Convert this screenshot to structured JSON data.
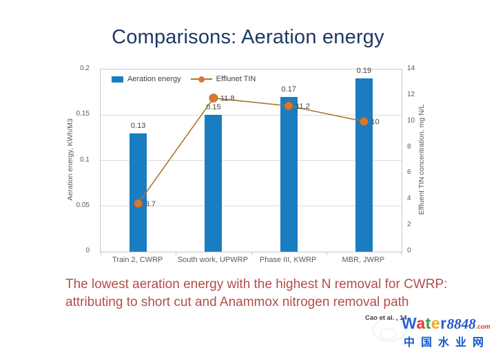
{
  "slide": {
    "title": "Comparisons: Aeration energy",
    "caption": {
      "line1": "The lowest aeration energy with the highest N removal for CWRP:",
      "line2": "attributing to short cut and Anammox nitrogen removal path"
    },
    "citation": "Cao et al. , 14"
  },
  "chart_data": {
    "type": "bar",
    "subtype": "bar-line-combo",
    "categories": [
      "Train 2, CWRP",
      "South work, UPWRP",
      "Phase III, KWRP",
      "MBR, JWRP"
    ],
    "series": [
      {
        "name": "Aeration energy",
        "type": "bar",
        "axis": "left",
        "values": [
          0.13,
          0.15,
          0.17,
          0.19
        ],
        "labels": [
          "0.13",
          "0.15",
          "0.17",
          "0.19"
        ],
        "color": "#1a7dc2"
      },
      {
        "name": "Efflunet TIN",
        "type": "line",
        "axis": "right",
        "values": [
          3.7,
          11.8,
          11.2,
          10
        ],
        "labels": [
          "3.7",
          "11.8",
          "11.2",
          "10"
        ],
        "line_color": "#a5782c",
        "marker_color": "#d9772e",
        "marker_edge_color": "#a86420"
      }
    ],
    "left_axis": {
      "label": "Aeration energy, KWh/M3",
      "min": 0,
      "max": 0.2,
      "ticks": [
        "0.2",
        "0.15",
        "0.1",
        "0.05",
        "0"
      ]
    },
    "right_axis": {
      "label": "Effluent TIN concentration, mg N/L",
      "min": 0,
      "max": 14,
      "ticks": [
        "14",
        "12",
        "10",
        "8",
        "6",
        "4",
        "2",
        "0"
      ]
    },
    "legend_position": "top-inside",
    "grid": true,
    "label_color": "#404040",
    "tick_color": "#595959"
  },
  "watermark": {
    "brand_letters": [
      {
        "char": "W",
        "color": "#2b62d9"
      },
      {
        "char": "a",
        "color": "#e03a2f"
      },
      {
        "char": "t",
        "color": "#2f9e44"
      },
      {
        "char": "e",
        "color": "#f2a71b"
      },
      {
        "char": "r",
        "color": "#2b62d9"
      }
    ],
    "brand_number": "8848",
    "brand_tld": ".com",
    "chinese_name": "中国水业网"
  }
}
